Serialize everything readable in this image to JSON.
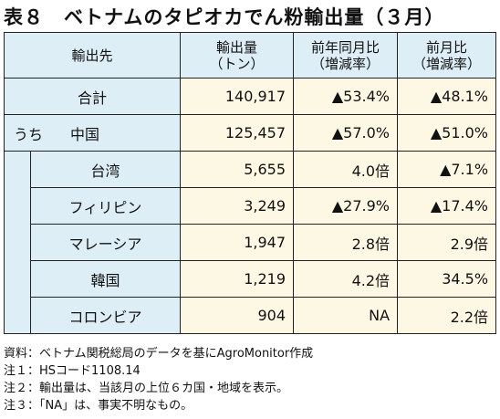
{
  "title": "表８　ベトナムのタピオカでん粉輸出量（３月）",
  "headers": {
    "dest": "輸出先",
    "volume_line1": "輸出量",
    "volume_line2": "（トン）",
    "yoy_line1": "前年同月比",
    "yoy_line2": "（増減率）",
    "mom_line1": "前月比",
    "mom_line2": "（増減率）"
  },
  "total": {
    "label": "合計",
    "volume": "140,917",
    "yoy": "▲53.4%",
    "mom": "▲48.1%"
  },
  "of_which": "うち",
  "rows": [
    {
      "name": "中国",
      "volume": "125,457",
      "yoy": "▲57.0%",
      "mom": "▲51.0%"
    },
    {
      "name": "台湾",
      "volume": "5,655",
      "yoy": "4.0倍",
      "mom": "▲7.1%"
    },
    {
      "name": "フィリピン",
      "volume": "3,249",
      "yoy": "▲27.9%",
      "mom": "▲17.4%"
    },
    {
      "name": "マレーシア",
      "volume": "1,947",
      "yoy": "2.8倍",
      "mom": "2.9倍"
    },
    {
      "name": "韓国",
      "volume": "1,219",
      "yoy": "4.2倍",
      "mom": "34.5%"
    },
    {
      "name": "コロンビア",
      "volume": "904",
      "yoy": "NA",
      "mom": "2.2倍"
    }
  ],
  "notes": [
    "資料：ベトナム関税総局のデータを基にAgroMonitor作成",
    "注１：HSコード1108.14",
    "注２：輸出量は、当該月の上位６カ国・地域を表示。",
    "注３：「NA」は、事実不明なもの。"
  ]
}
